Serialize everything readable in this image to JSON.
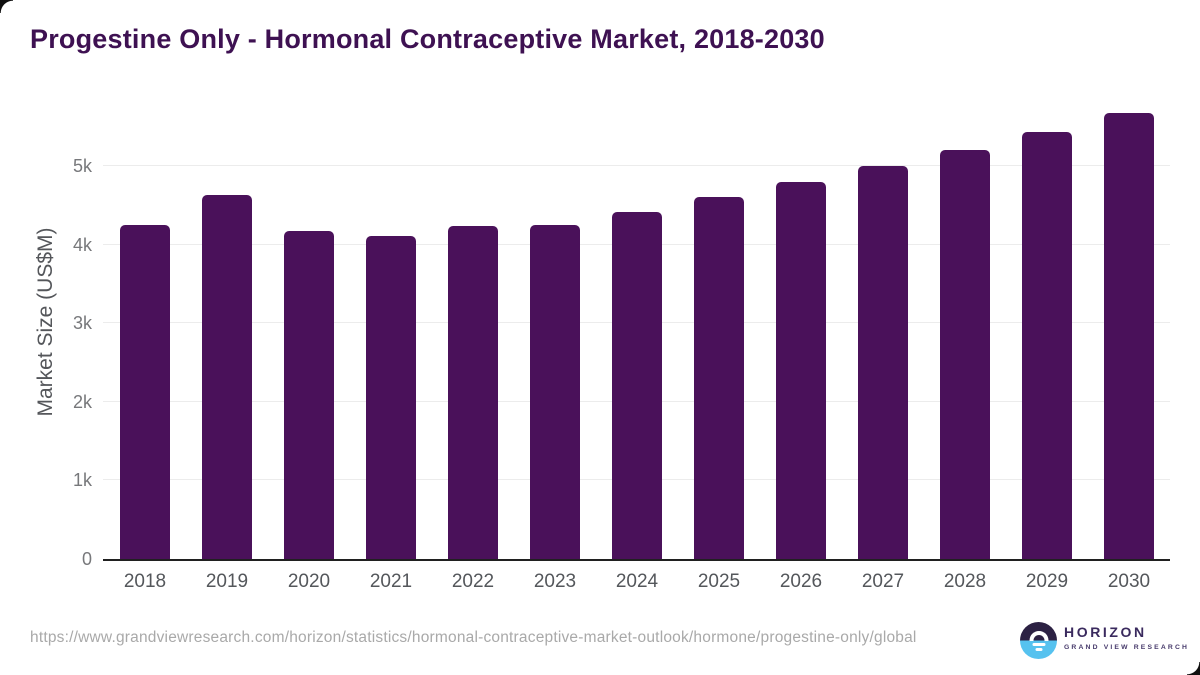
{
  "header": {
    "title": "Progestine Only - Hormonal Contraceptive Market, 2018-2030"
  },
  "chart_data": {
    "type": "bar",
    "title": "Progestine Only - Hormonal Contraceptive Market, 2018-2030",
    "categories": [
      "2018",
      "2019",
      "2020",
      "2021",
      "2022",
      "2023",
      "2024",
      "2025",
      "2026",
      "2027",
      "2028",
      "2029",
      "2030"
    ],
    "values": [
      4250,
      4630,
      4170,
      4110,
      4240,
      4250,
      4420,
      4610,
      4800,
      5000,
      5200,
      5430,
      5670
    ],
    "xlabel": "",
    "ylabel": "Market Size (US$M)",
    "ylim": [
      0,
      5840
    ],
    "yticks": [
      {
        "value": 0,
        "label": "0"
      },
      {
        "value": 1000,
        "label": "1k"
      },
      {
        "value": 2000,
        "label": "2k"
      },
      {
        "value": 3000,
        "label": "3k"
      },
      {
        "value": 4000,
        "label": "4k"
      },
      {
        "value": 5000,
        "label": "5k"
      }
    ],
    "grid": "horizontal",
    "legend": "none",
    "bar_color": "#4a115a"
  },
  "footer": {
    "source_url": "https://www.grandviewresearch.com/horizon/statistics/hormonal-contraceptive-market-outlook/hormone/progestine-only/global",
    "logo_name": "HORIZON",
    "logo_subtitle": "GRAND VIEW RESEARCH"
  },
  "colors": {
    "bar": "#4a115a",
    "title_text": "#3e1152",
    "gridline": "#ececec",
    "axis_line": "#202020",
    "logo_dark": "#2c2143",
    "logo_blue": "#56c2ef",
    "logo_text": "#3a2a5e"
  }
}
